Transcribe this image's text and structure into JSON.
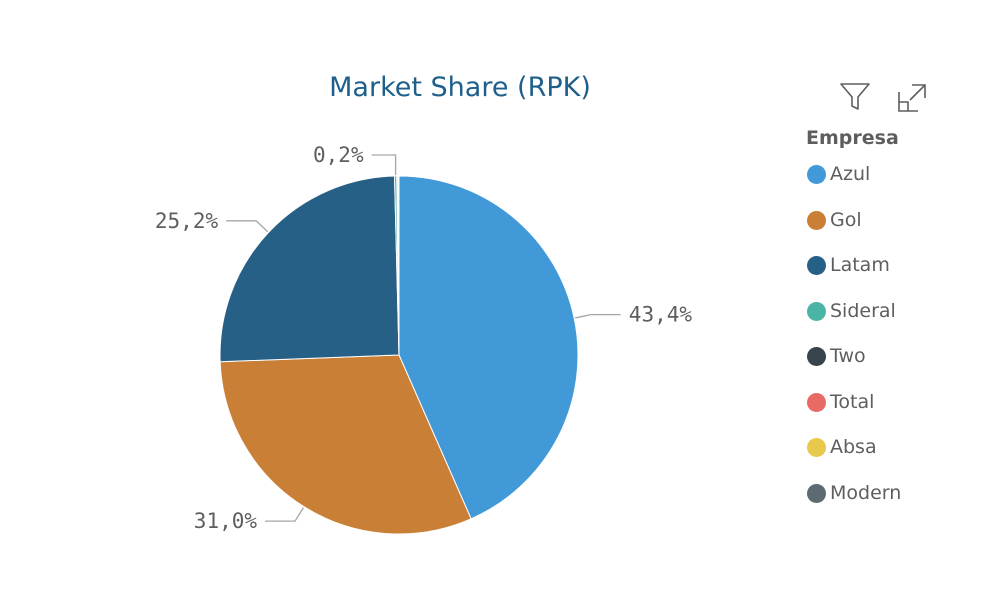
{
  "title": "Market Share (RPK)",
  "icons": {
    "filter": "filter-icon",
    "focus": "focus-mode-icon"
  },
  "legend": {
    "title": "Empresa",
    "items": [
      {
        "label": "Azul",
        "color": "#4299d8"
      },
      {
        "label": "Gol",
        "color": "#c97f36"
      },
      {
        "label": "Latam",
        "color": "#276087"
      },
      {
        "label": "Sideral",
        "color": "#4ab4a6"
      },
      {
        "label": "Two",
        "color": "#38444b"
      },
      {
        "label": "Total",
        "color": "#e86a64"
      },
      {
        "label": "Absa",
        "color": "#e8c94b"
      },
      {
        "label": "Modern",
        "color": "#5d6a72"
      }
    ]
  },
  "chart_data": {
    "type": "pie",
    "title": "Market Share (RPK)",
    "legend_title": "Empresa",
    "legend_position": "right",
    "categories": [
      "Azul",
      "Gol",
      "Latam",
      "Sideral",
      "Two",
      "Total",
      "Absa",
      "Modern"
    ],
    "values": [
      43.4,
      31.0,
      25.2,
      0.2,
      0.1,
      0.05,
      0.03,
      0.02
    ],
    "data_labels": [
      "43,4%",
      "31,0%",
      "25,2%",
      "0,2%",
      null,
      null,
      null,
      null
    ],
    "colors": [
      "#4299d8",
      "#c97f36",
      "#276087",
      "#4ab4a6",
      "#38444b",
      "#e86a64",
      "#e8c94b",
      "#5d6a72"
    ]
  }
}
